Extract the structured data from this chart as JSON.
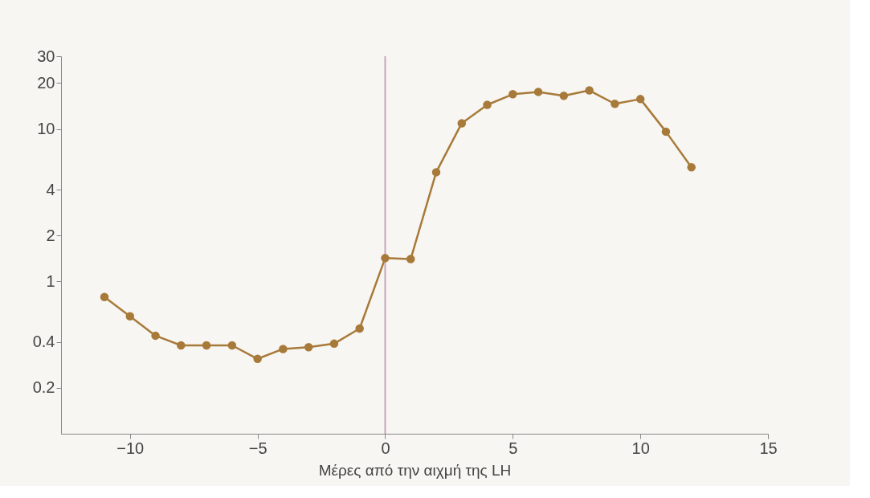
{
  "chart_data": {
    "type": "line",
    "xlabel": "Μέρες από την αιχμή της LH",
    "x": [
      -11,
      -10,
      -9,
      -8,
      -7,
      -6,
      -5,
      -4,
      -3,
      -2,
      -1,
      0,
      1,
      2,
      3,
      4,
      5,
      6,
      7,
      8,
      9,
      10,
      11,
      12
    ],
    "series": [
      {
        "color": "#a87a3a",
        "values": [
          0.79,
          0.59,
          0.44,
          0.38,
          0.38,
          0.38,
          0.31,
          0.36,
          0.37,
          0.39,
          0.49,
          1.42,
          1.4,
          5.2,
          10.9,
          14.4,
          16.9,
          17.5,
          16.5,
          17.9,
          14.6,
          15.7,
          9.6,
          5.6
        ]
      }
    ],
    "log": "y",
    "xlim": [
      -12.7,
      15
    ],
    "xticks": [
      -10,
      -5,
      0,
      5,
      10,
      15
    ],
    "ylim": [
      0.1,
      30
    ],
    "yticks": [
      0.2,
      0.4,
      1,
      2,
      4,
      10,
      20,
      30
    ],
    "ref_lines": [
      {
        "axis": "x",
        "value": 0,
        "color": "#c8a8c0"
      }
    ],
    "grid": false,
    "marker": "circle",
    "line_style": "solid"
  }
}
